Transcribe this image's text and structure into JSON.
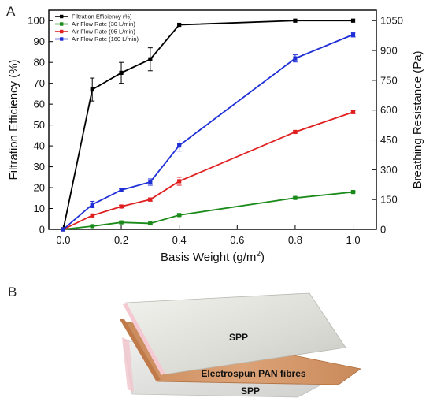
{
  "panel_a_label": "A",
  "panel_b_label": "B",
  "chart_data": {
    "type": "line",
    "xlabel": "Basis Weight (g/m²)",
    "ylabel_left": "Filtration Efficiency (%)",
    "ylabel_right": "Breathing Resistance (Pa)",
    "xlim": [
      -0.05,
      1.08
    ],
    "ylim_left": [
      0,
      105
    ],
    "ylim_right": [
      0,
      1102.5
    ],
    "x_ticks": [
      0.0,
      0.2,
      0.4,
      0.6,
      0.8,
      1.0
    ],
    "x_tick_labels": [
      "0.0",
      "0.2",
      "0.4",
      "0.6",
      "0.8",
      "1.0"
    ],
    "y_left_ticks": [
      0,
      10,
      20,
      30,
      40,
      50,
      60,
      70,
      80,
      90,
      100
    ],
    "y_left_tick_labels": [
      "0",
      "10",
      "20",
      "30",
      "40",
      "50",
      "60",
      "70",
      "80",
      "90",
      "100"
    ],
    "y_right_ticks": [
      0,
      150,
      300,
      450,
      600,
      750,
      900,
      1050
    ],
    "y_right_tick_labels": [
      "0",
      "150",
      "300",
      "450",
      "600",
      "750",
      "900",
      "1050"
    ],
    "grid": false,
    "legend_position": "top-left",
    "series": [
      {
        "name": "Filtration Efficiency (%)",
        "axis": "left",
        "color": "#000000",
        "x": [
          0,
          0.1,
          0.2,
          0.3,
          0.4,
          0.8,
          1.0
        ],
        "y": [
          0,
          67,
          75,
          81.5,
          98,
          100,
          100
        ],
        "error": [
          0,
          5.5,
          5,
          5.5,
          0,
          0,
          0
        ]
      },
      {
        "name": "Air Flow Rate (30 L/min)",
        "axis": "right",
        "color": "#1a8a1a",
        "x": [
          0,
          0.1,
          0.2,
          0.3,
          0.4,
          0.8,
          1.0
        ],
        "y": [
          0,
          16,
          35,
          30,
          72,
          158,
          188
        ],
        "error": [
          0,
          3,
          4,
          4,
          5,
          5,
          5
        ]
      },
      {
        "name": "Air Flow Rate (95 L/min)",
        "axis": "right",
        "color": "#e02020",
        "x": [
          0,
          0.1,
          0.2,
          0.3,
          0.4,
          0.8,
          1.0
        ],
        "y": [
          0,
          70,
          115,
          150,
          242,
          490,
          590
        ],
        "error": [
          0,
          6,
          6,
          8,
          20,
          6,
          8
        ]
      },
      {
        "name": "Air Flow Rate (160 L/min)",
        "axis": "right",
        "color": "#1f2fd6",
        "x": [
          0,
          0.1,
          0.2,
          0.3,
          0.4,
          0.8,
          1.0
        ],
        "y": [
          0,
          125,
          198,
          238,
          422,
          860,
          980
        ],
        "error": [
          0,
          16,
          8,
          16,
          28,
          18,
          12
        ]
      }
    ]
  },
  "diagram": {
    "top_layer_label": "SPP",
    "middle_layer_label": "Electrospun PAN fibres",
    "bottom_layer_label": "SPP"
  },
  "colors": {
    "middle_layer": "#d99f72",
    "middle_edge": "#a8683a",
    "top_layer": "#dcdcd6",
    "bottom_layer": "#d8d8d6",
    "pink_edge": "#f4c2cc"
  }
}
